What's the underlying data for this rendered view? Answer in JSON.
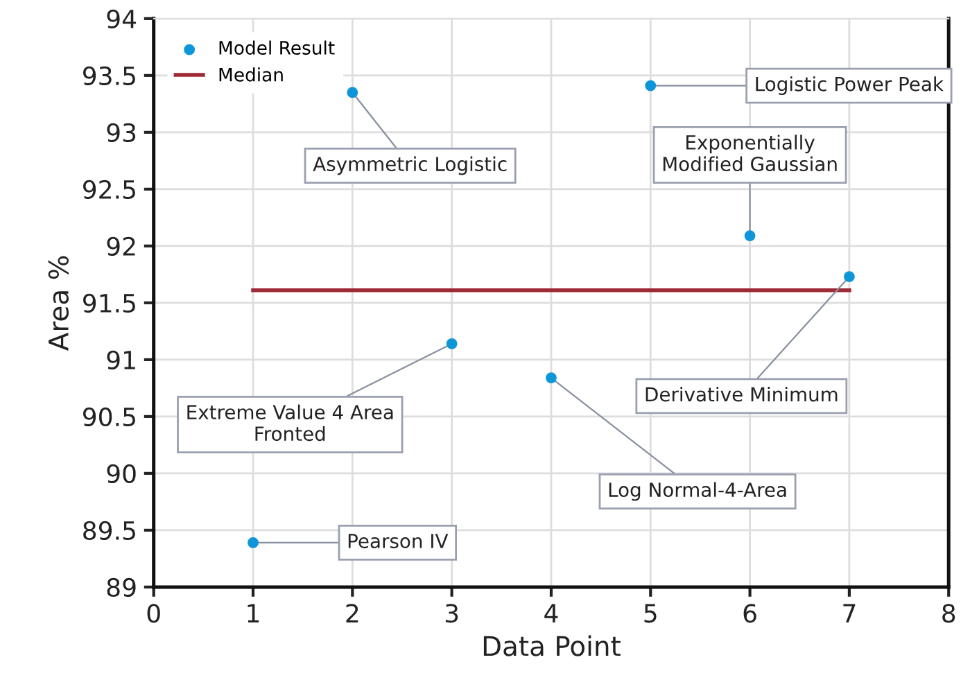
{
  "chart_data": {
    "type": "scatter",
    "xlabel": "Data Point",
    "ylabel": "Area %",
    "x": [
      1,
      2,
      3,
      4,
      5,
      6,
      7
    ],
    "series": [
      {
        "name": "Model Result",
        "marker": "circle",
        "color": "#0f96d8",
        "values": [
          89.39,
          93.35,
          91.14,
          90.84,
          93.41,
          92.09,
          91.73
        ]
      },
      {
        "name": "Median",
        "type": "line",
        "color": "#9e2a36",
        "x": [
          1,
          7
        ],
        "values": [
          91.61,
          91.61
        ]
      }
    ],
    "annotations": [
      {
        "text": "Pearson IV",
        "x": 1,
        "y": 89.39
      },
      {
        "text": "Asymmetric Logistic",
        "x": 2,
        "y": 93.35
      },
      {
        "text": "Extreme Value 4 Area\nFronted",
        "x": 3,
        "y": 91.14
      },
      {
        "text": "Log Normal-4-Area",
        "x": 4,
        "y": 90.84
      },
      {
        "text": "Logistic Power Peak",
        "x": 5,
        "y": 93.41
      },
      {
        "text": "Exponentially\nModified Gaussian",
        "x": 6,
        "y": 92.09
      },
      {
        "text": "Derivative Minimum",
        "x": 7,
        "y": 91.73
      }
    ],
    "xlim": [
      0,
      8
    ],
    "xticks": [
      0,
      1,
      2,
      3,
      4,
      5,
      6,
      7,
      8
    ],
    "ylim": [
      89,
      94
    ],
    "yticks": [
      89,
      89.5,
      90,
      90.5,
      91,
      91.5,
      92,
      92.5,
      93,
      93.5,
      94
    ],
    "grid": true,
    "legend": "top left"
  }
}
